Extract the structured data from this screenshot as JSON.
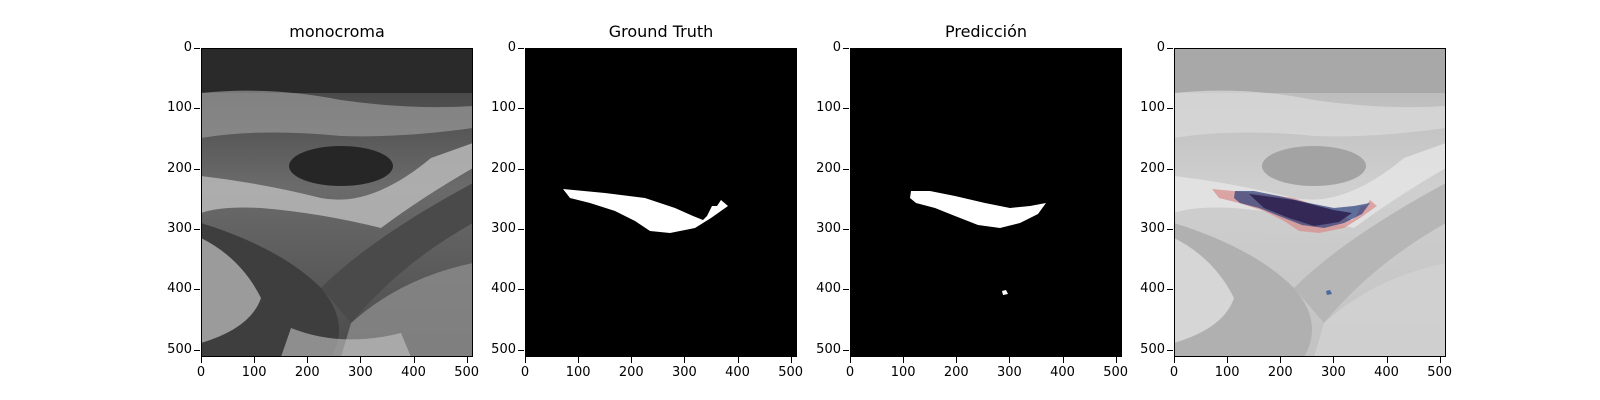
{
  "figure": {
    "panels": [
      {
        "title": "monocroma"
      },
      {
        "title": "Ground Truth"
      },
      {
        "title": "Predicción"
      },
      {
        "title": ""
      }
    ],
    "axes": {
      "y_ticks": [
        "0",
        "100",
        "200",
        "300",
        "400",
        "500"
      ],
      "x_ticks": [
        "0",
        "100",
        "200",
        "300",
        "400",
        "500"
      ]
    }
  }
}
